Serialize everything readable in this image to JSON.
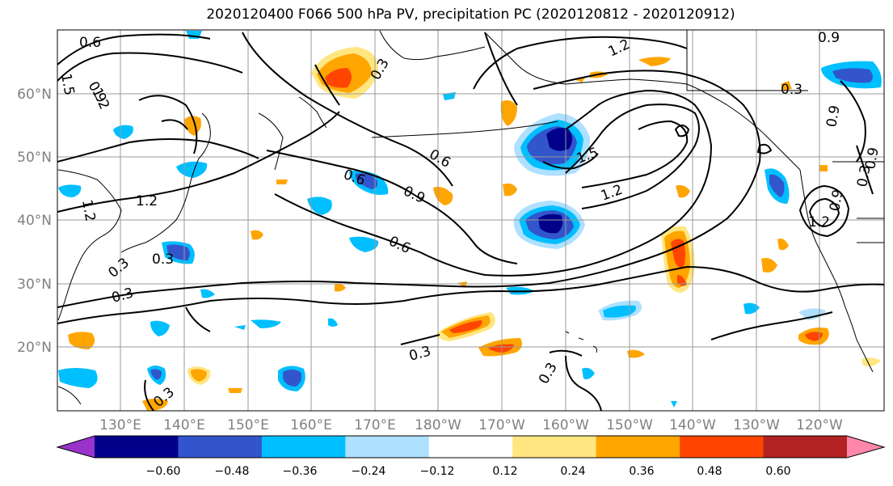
{
  "title": "2020120400 F066 500 hPa PV, precipitation PC (2020120812 - 2020120912)",
  "map": {
    "lat_labels": [
      "60°N",
      "50°N",
      "40°N",
      "30°N",
      "20°N"
    ],
    "lon_labels": [
      "130°E",
      "140°E",
      "150°E",
      "160°E",
      "170°E",
      "180°W",
      "170°W",
      "160°W",
      "150°W",
      "140°W",
      "130°W",
      "120°W"
    ],
    "pv_contour_labels": [
      "0.6",
      "0.9",
      "1.2",
      "1.5",
      "0.3",
      "1.2",
      "0.6",
      "0.9",
      "0.6",
      "0.9",
      "1.2",
      "1.5",
      "0.6",
      "0.3",
      "0.9",
      "1.2",
      "0.3",
      "0.3",
      "0.3",
      "1.2",
      "0.9",
      "0.3",
      "0.9",
      "0.3",
      "1.2",
      "0.3",
      "0.3"
    ]
  },
  "colorbar": {
    "ticks": [
      "−0.60",
      "−0.48",
      "−0.36",
      "−0.24",
      "−0.12",
      "0.12",
      "0.24",
      "0.36",
      "0.48",
      "0.60"
    ],
    "colors": [
      "#9933cc",
      "#00008b",
      "#3355cc",
      "#00bfff",
      "#aee0ff",
      "#ffffff",
      "#ffe680",
      "#ffa500",
      "#ff4500",
      "#b22222",
      "#ff88aa"
    ]
  },
  "colors": {
    "contour": "#000000",
    "grid": "#999999",
    "label_gray": "#808080"
  }
}
